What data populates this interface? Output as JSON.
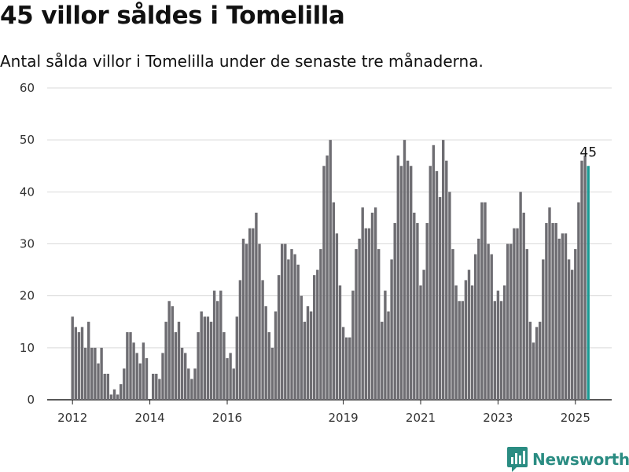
{
  "title": "45 villor såldes i Tomelilla",
  "subtitle": "Antal sålda villor i Tomelilla under de senaste tre månaderna.",
  "brand": {
    "name": "Newsworthy",
    "color": "#2a8c82",
    "icon": "bar-chart-badge-icon"
  },
  "chart_data": {
    "type": "bar",
    "title": "45 villor såldes i Tomelilla",
    "subtitle": "Antal sålda villor i Tomelilla under de senaste tre månaderna.",
    "xlabel": "",
    "ylabel": "",
    "ylim": [
      0,
      60
    ],
    "yticks": [
      0,
      10,
      20,
      30,
      40,
      50,
      60
    ],
    "xticks": [
      {
        "label": "2012",
        "index": 0
      },
      {
        "label": "2014",
        "index": 24
      },
      {
        "label": "2016",
        "index": 48
      },
      {
        "label": "2019",
        "index": 84
      },
      {
        "label": "2021",
        "index": 108
      },
      {
        "label": "2023",
        "index": 132
      },
      {
        "label": "2025",
        "index": 156
      }
    ],
    "grid": true,
    "bar_color": "#6e6d72",
    "highlight_color": "#1a9a93",
    "highlight_label": "45",
    "values": [
      16,
      14,
      13,
      14,
      10,
      15,
      10,
      10,
      7,
      10,
      5,
      5,
      1,
      2,
      1,
      3,
      6,
      13,
      13,
      11,
      9,
      7,
      11,
      8,
      0,
      5,
      5,
      4,
      9,
      15,
      19,
      18,
      13,
      15,
      10,
      9,
      6,
      4,
      6,
      13,
      17,
      16,
      16,
      15,
      21,
      19,
      21,
      13,
      8,
      9,
      6,
      16,
      23,
      31,
      30,
      33,
      33,
      36,
      30,
      23,
      18,
      13,
      10,
      17,
      24,
      30,
      30,
      27,
      29,
      28,
      26,
      20,
      15,
      18,
      17,
      24,
      25,
      29,
      45,
      47,
      50,
      38,
      32,
      22,
      14,
      12,
      12,
      21,
      29,
      31,
      37,
      33,
      33,
      36,
      37,
      29,
      15,
      21,
      17,
      27,
      34,
      47,
      45,
      50,
      46,
      45,
      36,
      34,
      22,
      25,
      34,
      45,
      49,
      44,
      39,
      50,
      46,
      40,
      29,
      22,
      19,
      19,
      23,
      25,
      22,
      28,
      31,
      38,
      38,
      30,
      28,
      19,
      21,
      19,
      22,
      30,
      30,
      33,
      33,
      40,
      36,
      29,
      15,
      11,
      14,
      15,
      27,
      34,
      37,
      34,
      34,
      31,
      32,
      32,
      27,
      25,
      29,
      38,
      46,
      47,
      45
    ]
  }
}
